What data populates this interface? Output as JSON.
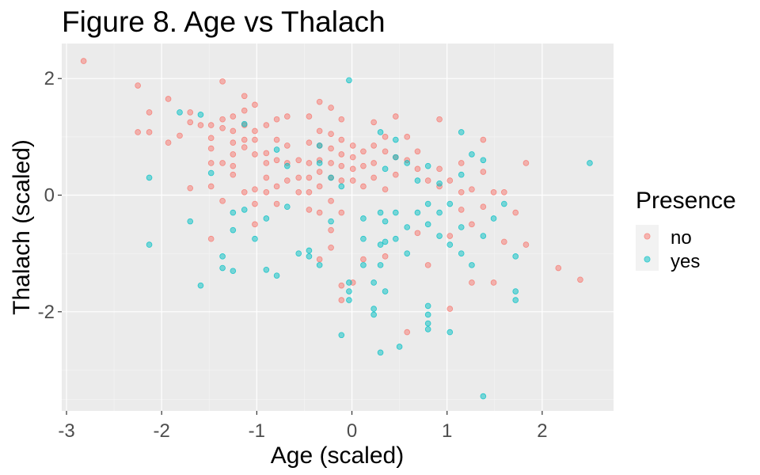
{
  "chart_data": {
    "type": "scatter",
    "title": "Figure 8. Age vs Thalach",
    "xlabel": "Age (scaled)",
    "ylabel": "Thalach (scaled)",
    "xlim": [
      -3.05,
      2.75
    ],
    "ylim": [
      -3.7,
      2.6
    ],
    "xticks": [
      -3,
      -2,
      -1,
      0,
      1,
      2
    ],
    "xtick_labels": [
      "-3",
      "-2",
      "-1",
      "0",
      "1",
      "2"
    ],
    "yticks": [
      -2,
      0,
      2
    ],
    "ytick_labels": [
      "-2",
      "0",
      "2"
    ],
    "grid": true,
    "legend": {
      "title": "Presence",
      "position": "right",
      "entries": [
        {
          "label": "no",
          "color": "#F8766D"
        },
        {
          "label": "yes",
          "color": "#00BFC4"
        }
      ]
    },
    "series": [
      {
        "name": "no",
        "color": "#F8766D",
        "points": [
          [
            -2.82,
            2.3
          ],
          [
            -2.25,
            1.88
          ],
          [
            -2.25,
            1.08
          ],
          [
            -2.13,
            1.42
          ],
          [
            -2.13,
            1.08
          ],
          [
            -1.93,
            1.65
          ],
          [
            -1.93,
            0.9
          ],
          [
            -1.81,
            1.02
          ],
          [
            -1.7,
            1.42
          ],
          [
            -1.7,
            1.25
          ],
          [
            -1.7,
            0.12
          ],
          [
            -1.59,
            1.2
          ],
          [
            -1.48,
            1.2
          ],
          [
            -1.48,
            0.98
          ],
          [
            -1.48,
            0.8
          ],
          [
            -1.48,
            0.55
          ],
          [
            -1.48,
            0.15
          ],
          [
            -1.48,
            -0.75
          ],
          [
            -1.36,
            1.95
          ],
          [
            -1.36,
            1.3
          ],
          [
            -1.36,
            1.15
          ],
          [
            -1.36,
            0.55
          ],
          [
            -1.36,
            -0.1
          ],
          [
            -1.25,
            1.35
          ],
          [
            -1.25,
            1.1
          ],
          [
            -1.25,
            0.9
          ],
          [
            -1.25,
            0.7
          ],
          [
            -1.25,
            0.5
          ],
          [
            -1.25,
            0.35
          ],
          [
            -1.13,
            1.7
          ],
          [
            -1.13,
            1.45
          ],
          [
            -1.13,
            1.2
          ],
          [
            -1.13,
            0.95
          ],
          [
            -1.13,
            0.82
          ],
          [
            -1.13,
            0.05
          ],
          [
            -1.02,
            1.55
          ],
          [
            -1.02,
            1.1
          ],
          [
            -1.02,
            0.95
          ],
          [
            -1.02,
            0.7
          ],
          [
            -1.02,
            0.1
          ],
          [
            -1.02,
            -0.15
          ],
          [
            -1.02,
            -0.5
          ],
          [
            -0.9,
            1.2
          ],
          [
            -0.9,
            0.72
          ],
          [
            -0.9,
            0.55
          ],
          [
            -0.9,
            0.3
          ],
          [
            -0.9,
            0.05
          ],
          [
            -0.79,
            1.3
          ],
          [
            -0.79,
            0.95
          ],
          [
            -0.79,
            0.6
          ],
          [
            -0.79,
            0.15
          ],
          [
            -0.79,
            -0.15
          ],
          [
            -0.68,
            1.35
          ],
          [
            -0.68,
            0.85
          ],
          [
            -0.68,
            0.55
          ],
          [
            -0.68,
            0.25
          ],
          [
            -0.56,
            0.6
          ],
          [
            -0.56,
            0.3
          ],
          [
            -0.56,
            0.05
          ],
          [
            -0.45,
            1.35
          ],
          [
            -0.45,
            0.9
          ],
          [
            -0.45,
            0.55
          ],
          [
            -0.45,
            0.3
          ],
          [
            -0.45,
            0.05
          ],
          [
            -0.45,
            -0.25
          ],
          [
            -0.34,
            1.6
          ],
          [
            -0.34,
            1.1
          ],
          [
            -0.34,
            0.85
          ],
          [
            -0.34,
            0.6
          ],
          [
            -0.34,
            0.4
          ],
          [
            -0.34,
            0.15
          ],
          [
            -0.34,
            -0.3
          ],
          [
            -0.34,
            -1.1
          ],
          [
            -0.22,
            1.5
          ],
          [
            -0.22,
            1.05
          ],
          [
            -0.22,
            0.8
          ],
          [
            -0.22,
            0.55
          ],
          [
            -0.22,
            0.3
          ],
          [
            -0.22,
            -0.1
          ],
          [
            -0.22,
            -0.6
          ],
          [
            -0.22,
            -0.9
          ],
          [
            -0.11,
            1.3
          ],
          [
            -0.11,
            0.95
          ],
          [
            -0.11,
            0.7
          ],
          [
            -0.11,
            0.5
          ],
          [
            -0.11,
            0.25
          ],
          [
            -0.11,
            -0.3
          ],
          [
            -0.11,
            -1.55
          ],
          [
            -0.11,
            -1.8
          ],
          [
            0.01,
            0.85
          ],
          [
            0.01,
            0.65
          ],
          [
            0.01,
            0.45
          ],
          [
            0.01,
            0.25
          ],
          [
            0.01,
            -1.5
          ],
          [
            0.12,
            0.75
          ],
          [
            0.12,
            0.5
          ],
          [
            0.12,
            0.15
          ],
          [
            0.12,
            -1.1
          ],
          [
            0.23,
            1.25
          ],
          [
            0.23,
            0.85
          ],
          [
            0.23,
            0.55
          ],
          [
            0.23,
            0.3
          ],
          [
            0.35,
            1.0
          ],
          [
            0.35,
            0.75
          ],
          [
            0.35,
            0.1
          ],
          [
            0.35,
            -1.05
          ],
          [
            0.46,
            1.35
          ],
          [
            0.46,
            0.65
          ],
          [
            0.46,
            0.35
          ],
          [
            0.58,
            1.0
          ],
          [
            0.58,
            0.6
          ],
          [
            0.58,
            -2.35
          ],
          [
            0.69,
            0.75
          ],
          [
            0.69,
            0.45
          ],
          [
            0.69,
            -0.65
          ],
          [
            0.8,
            0.25
          ],
          [
            0.8,
            -1.2
          ],
          [
            0.92,
            1.3
          ],
          [
            0.92,
            0.45
          ],
          [
            0.92,
            0.15
          ],
          [
            1.03,
            0.25
          ],
          [
            1.03,
            -0.7
          ],
          [
            1.03,
            -1.95
          ],
          [
            1.15,
            0.55
          ],
          [
            1.15,
            0.05
          ],
          [
            1.15,
            -0.25
          ],
          [
            1.26,
            0.1
          ],
          [
            1.26,
            -0.5
          ],
          [
            1.26,
            -1.5
          ],
          [
            1.38,
            0.95
          ],
          [
            1.38,
            0.4
          ],
          [
            1.38,
            -0.2
          ],
          [
            1.49,
            0.05
          ],
          [
            1.49,
            -1.5
          ],
          [
            1.6,
            0.05
          ],
          [
            1.6,
            -0.8
          ],
          [
            1.72,
            -0.3
          ],
          [
            1.83,
            0.55
          ],
          [
            1.83,
            -0.85
          ],
          [
            2.17,
            -1.25
          ],
          [
            2.4,
            -1.45
          ]
        ]
      },
      {
        "name": "yes",
        "color": "#00BFC4",
        "points": [
          [
            -2.13,
            0.3
          ],
          [
            -2.13,
            -0.85
          ],
          [
            -1.81,
            1.42
          ],
          [
            -1.7,
            -0.45
          ],
          [
            -1.59,
            1.38
          ],
          [
            -1.59,
            -1.55
          ],
          [
            -1.48,
            0.38
          ],
          [
            -1.36,
            -1.05
          ],
          [
            -1.36,
            -1.25
          ],
          [
            -1.25,
            -0.3
          ],
          [
            -1.25,
            -0.6
          ],
          [
            -1.25,
            -1.3
          ],
          [
            -1.13,
            1.22
          ],
          [
            -1.13,
            -0.25
          ],
          [
            -1.02,
            -0.75
          ],
          [
            -0.9,
            -0.4
          ],
          [
            -0.9,
            -1.28
          ],
          [
            -0.79,
            0.78
          ],
          [
            -0.79,
            -1.38
          ],
          [
            -0.68,
            0.5
          ],
          [
            -0.68,
            -0.2
          ],
          [
            -0.56,
            -1.0
          ],
          [
            -0.45,
            -0.95
          ],
          [
            -0.45,
            -1.05
          ],
          [
            -0.34,
            0.85
          ],
          [
            -0.34,
            0.55
          ],
          [
            -0.34,
            -1.2
          ],
          [
            -0.22,
            0.3
          ],
          [
            -0.22,
            -0.45
          ],
          [
            -0.11,
            0.15
          ],
          [
            -0.11,
            -2.4
          ],
          [
            -0.03,
            1.97
          ],
          [
            -0.03,
            -1.5
          ],
          [
            -0.03,
            -1.65
          ],
          [
            -0.03,
            -1.8
          ],
          [
            0.12,
            -0.4
          ],
          [
            0.12,
            -0.75
          ],
          [
            0.12,
            -1.2
          ],
          [
            0.23,
            -1.5
          ],
          [
            0.23,
            -1.95
          ],
          [
            0.23,
            -2.05
          ],
          [
            0.3,
            1.08
          ],
          [
            0.3,
            -0.3
          ],
          [
            0.3,
            -0.85
          ],
          [
            0.3,
            -1.2
          ],
          [
            0.3,
            -2.7
          ],
          [
            0.35,
            0.45
          ],
          [
            0.35,
            -0.45
          ],
          [
            0.35,
            -0.8
          ],
          [
            0.35,
            -1.65
          ],
          [
            0.46,
            0.95
          ],
          [
            0.46,
            0.65
          ],
          [
            0.46,
            -0.3
          ],
          [
            0.46,
            -0.75
          ],
          [
            0.5,
            -2.6
          ],
          [
            0.58,
            0.55
          ],
          [
            0.58,
            -0.55
          ],
          [
            0.58,
            -1.0
          ],
          [
            0.69,
            0.25
          ],
          [
            0.69,
            -0.3
          ],
          [
            0.8,
            0.5
          ],
          [
            0.8,
            -0.15
          ],
          [
            0.8,
            -0.5
          ],
          [
            0.8,
            -1.9
          ],
          [
            0.8,
            -2.05
          ],
          [
            0.8,
            -2.2
          ],
          [
            0.8,
            -2.3
          ],
          [
            0.92,
            0.2
          ],
          [
            0.92,
            -0.3
          ],
          [
            0.92,
            -0.7
          ],
          [
            1.03,
            -0.15
          ],
          [
            1.03,
            -0.85
          ],
          [
            1.03,
            -2.35
          ],
          [
            1.15,
            1.08
          ],
          [
            1.15,
            0.35
          ],
          [
            1.15,
            -0.55
          ],
          [
            1.15,
            -1.0
          ],
          [
            1.26,
            0.7
          ],
          [
            1.26,
            -1.2
          ],
          [
            1.38,
            0.6
          ],
          [
            1.38,
            -0.7
          ],
          [
            1.38,
            -3.45
          ],
          [
            1.49,
            -0.4
          ],
          [
            1.6,
            -0.15
          ],
          [
            1.72,
            -1.05
          ],
          [
            1.72,
            -1.65
          ],
          [
            1.72,
            -1.8
          ],
          [
            2.5,
            0.55
          ]
        ]
      }
    ]
  }
}
